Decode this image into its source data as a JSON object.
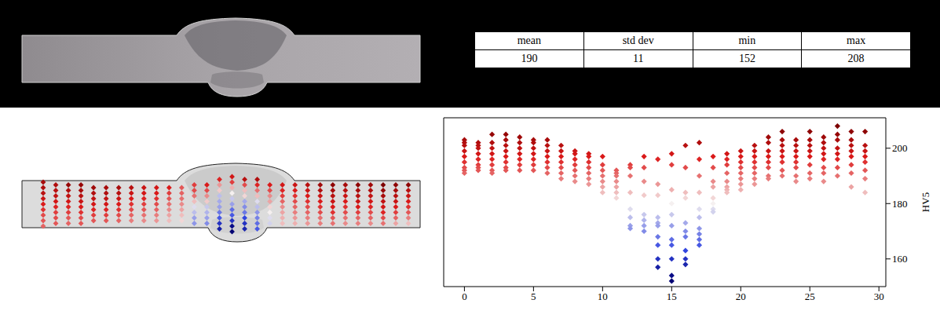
{
  "table": {
    "header": [
      "mean",
      "std dev",
      "min",
      "max"
    ],
    "rows": [
      [
        190,
        11,
        152,
        208
      ]
    ]
  },
  "chart_data": {
    "type": "scatter",
    "y_label": "HV5",
    "x": [
      0,
      1,
      2,
      3,
      4,
      5,
      6,
      7,
      8,
      9,
      10,
      11,
      12,
      13,
      14,
      15,
      16,
      17,
      18,
      19,
      20,
      21,
      22,
      23,
      24,
      25,
      26,
      27,
      28,
      29
    ],
    "values": [
      [
        203,
        202,
        201,
        199,
        197,
        195,
        193,
        192,
        191
      ],
      [
        202,
        201,
        200,
        198,
        196,
        194,
        193,
        192
      ],
      [
        205,
        202,
        200,
        198,
        196,
        194,
        192,
        191
      ],
      [
        205,
        203,
        201,
        199,
        197,
        195,
        193,
        192
      ],
      [
        204,
        202,
        200,
        198,
        196,
        194,
        192
      ],
      [
        203,
        202,
        200,
        198,
        196,
        194,
        192
      ],
      [
        203,
        201,
        199,
        197,
        195,
        193,
        191
      ],
      [
        201,
        199,
        197,
        195,
        193,
        191,
        189
      ],
      [
        199,
        198,
        196,
        194,
        192,
        190,
        188
      ],
      [
        198,
        197,
        195,
        193,
        191,
        189,
        187
      ],
      [
        197,
        194,
        192,
        190,
        188,
        186,
        184
      ],
      [
        192,
        191,
        190,
        188,
        186,
        184,
        182
      ],
      [
        194,
        193,
        190,
        184,
        178,
        175,
        172,
        171
      ],
      [
        197,
        193,
        188,
        183,
        176,
        174,
        172,
        170
      ],
      [
        196,
        187,
        183,
        175,
        173,
        172,
        168,
        165,
        160,
        157
      ],
      [
        198,
        194,
        185,
        180,
        176,
        172,
        167,
        165,
        160,
        154,
        152
      ],
      [
        201,
        193,
        184,
        182,
        173,
        170,
        168,
        163,
        160,
        158
      ],
      [
        202,
        196,
        190,
        184,
        178,
        175,
        171,
        169,
        167,
        165
      ],
      [
        197,
        193,
        188,
        186,
        182,
        180,
        178,
        177
      ],
      [
        198,
        196,
        194,
        191,
        188,
        186,
        185,
        184
      ],
      [
        199,
        197,
        195,
        193,
        191,
        189,
        187,
        185
      ],
      [
        201,
        199,
        197,
        195,
        193,
        191,
        189,
        187
      ],
      [
        204,
        202,
        199,
        197,
        195,
        193,
        190,
        189
      ],
      [
        206,
        203,
        201,
        199,
        197,
        195,
        192,
        190
      ],
      [
        203,
        201,
        199,
        197,
        195,
        193,
        190,
        188
      ],
      [
        206,
        203,
        201,
        199,
        197,
        194,
        191,
        189
      ],
      [
        204,
        202,
        200,
        198,
        196,
        193,
        191,
        188
      ],
      [
        208,
        205,
        203,
        200,
        198,
        196,
        193,
        190
      ],
      [
        206,
        203,
        201,
        199,
        197,
        194,
        191,
        186
      ],
      [
        206,
        201,
        199,
        197,
        195,
        192,
        189,
        184
      ]
    ],
    "xlim": [
      -1.5,
      30.5
    ],
    "xticks": [
      0,
      5,
      10,
      15,
      20,
      25,
      30
    ],
    "ylim": [
      150,
      211
    ],
    "yticks": [
      160,
      180,
      200
    ],
    "marker": "diamond",
    "color_range": [
      152,
      208
    ]
  }
}
